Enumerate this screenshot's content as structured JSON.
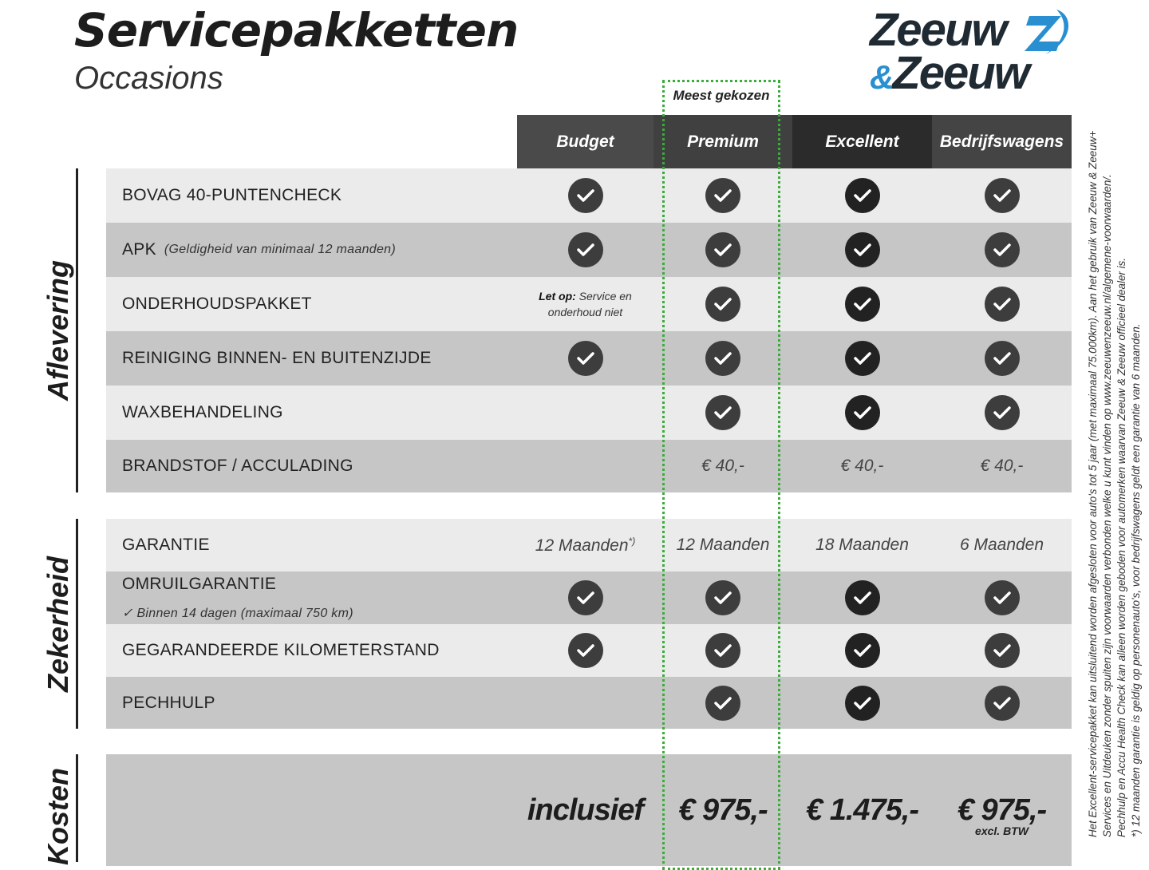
{
  "header": {
    "title": "Servicepakketten",
    "subtitle": "Occasions",
    "logo_text": [
      "Zeeuw",
      "&",
      "Zeeuw"
    ]
  },
  "colors": {
    "accent_green": "#3aac3a",
    "logo_blue": "#2a8fd0",
    "logo_dark": "#1f2a33"
  },
  "most_chosen": "Meest gekozen",
  "columns": [
    {
      "label": "Budget",
      "bg": "#4a4a4a"
    },
    {
      "label": "Premium",
      "bg": "#404040"
    },
    {
      "label": "Excellent",
      "bg": "#2b2b2b"
    },
    {
      "label": "Bedrijfswagens",
      "bg": "#444444"
    }
  ],
  "sections": [
    {
      "label": "Aflevering",
      "rows": [
        {
          "label": "BOVAG 40-PUNTENCHECK",
          "cells": [
            "check",
            "check",
            "check",
            "check"
          ]
        },
        {
          "label": "APK",
          "note": "(Geldigheid van minimaal 12 maanden)",
          "cells": [
            "check",
            "check",
            "check",
            "check"
          ]
        },
        {
          "label": "ONDERHOUDSPAKKET",
          "cells": [
            {
              "bold": "Let op:",
              "text": "Service en onderhoud niet"
            },
            "check",
            "check",
            "check"
          ]
        },
        {
          "label": "REINIGING BINNEN- EN BUITENZIJDE",
          "cells": [
            "check",
            "check",
            "check",
            "check"
          ]
        },
        {
          "label": "WAXBEHANDELING",
          "cells": [
            "",
            "check",
            "check",
            "check"
          ]
        },
        {
          "label": "BRANDSTOF / ACCULADING",
          "cells": [
            "",
            "€ 40,-",
            "€ 40,-",
            "€ 40,-"
          ]
        }
      ]
    },
    {
      "label": "Zekerheid",
      "rows": [
        {
          "label": "GARANTIE",
          "cells": [
            {
              "text": "12 Maanden",
              "sup": "*)"
            },
            "12 Maanden",
            "18 Maanden",
            "6 Maanden"
          ]
        },
        {
          "label": "OMRUILGARANTIE",
          "sub": "✓   Binnen 14 dagen (maximaal 750 km)",
          "cells": [
            "check",
            "check",
            "check",
            "check"
          ]
        },
        {
          "label": "GEGARANDEERDE KILOMETERSTAND",
          "cells": [
            "check",
            "check",
            "check",
            "check"
          ]
        },
        {
          "label": "PECHHULP",
          "cells": [
            "",
            "check",
            "check",
            "check"
          ]
        }
      ]
    },
    {
      "label": "Kosten",
      "rows": [
        {
          "label": "",
          "cells": [
            "inclusief",
            "€ 975,-",
            "€ 1.475,-",
            {
              "text": "€ 975,-",
              "sub": "excl. BTW"
            }
          ]
        }
      ]
    }
  ],
  "footnotes": [
    "Het Excellent-servicepakket kan uitsluitend worden afgesloten voor auto's tot 5 jaar (met maximaal 75.000km). Aan het gebruik van Zeeuw & Zeeuw+",
    "Services en Uitdeuken zonder spuiten zijn voorwaarden verbonden welke u kunt vinden op www.zeeuwenzeeuw.nl/algemene-voorwaarden/.",
    "Pechhulp en Accu Health Check kan alleen worden geboden voor automerken waarvan Zeeuw & Zeeuw officieel dealer is.",
    "*) 12 maanden garantie is geldig op personenauto's, voor bedrijfswagens geldt een garantie van 6 maanden."
  ]
}
